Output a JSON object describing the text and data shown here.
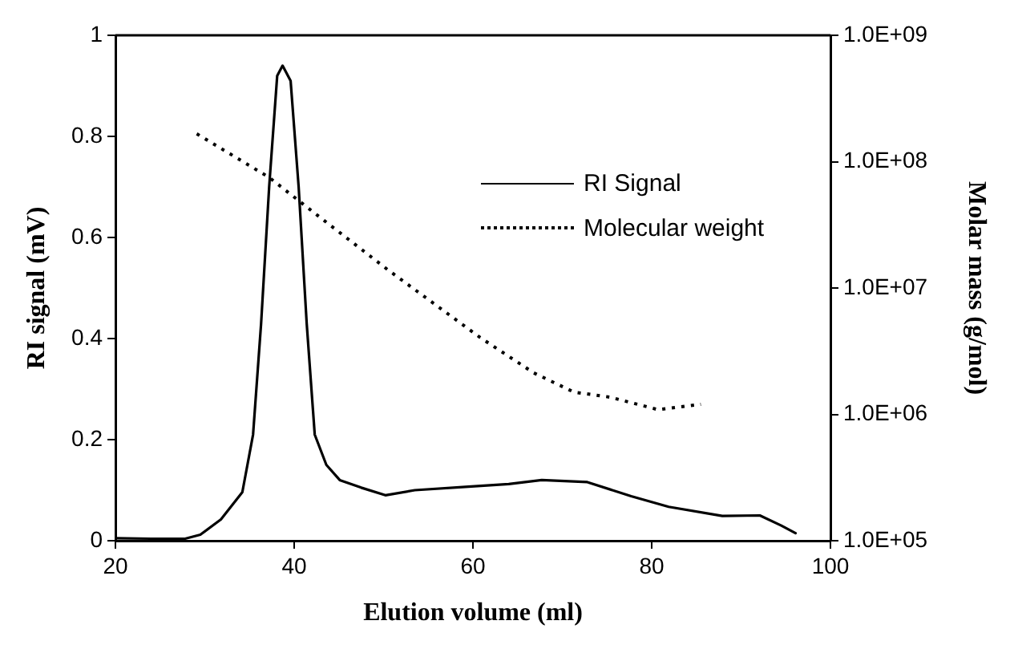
{
  "chart_data": {
    "type": "line",
    "xlabel": "Elution volume (ml)",
    "ylabel": "RI signal (mV)",
    "y2label": "Molar mass (g/mol)",
    "xlim": [
      20,
      100
    ],
    "xticks": [
      20,
      40,
      60,
      80,
      100
    ],
    "ylim": [
      0,
      1
    ],
    "yticks": [
      0,
      0.2,
      0.4,
      0.6,
      0.8,
      1
    ],
    "y2lim": [
      100000,
      1000000000
    ],
    "y2ticks": [
      {
        "value": 100000,
        "label": "1.0E+05"
      },
      {
        "value": 1000000,
        "label": "1.0E+06"
      },
      {
        "value": 10000000,
        "label": "1.0E+07"
      },
      {
        "value": 100000000,
        "label": "1.0E+08"
      },
      {
        "value": 1000000000,
        "label": "1.0E+09"
      }
    ],
    "log": "y2",
    "grid": false,
    "legend": "top right",
    "marker": "none",
    "series": [
      {
        "name": "RI Signal",
        "color": "#000000",
        "line_style": "solid",
        "x": [
          20,
          24,
          27.8,
          29.5,
          31.8,
          34.2,
          35.4,
          36.3,
          37.2,
          38.1,
          38.7,
          39.6,
          40.5,
          41.4,
          42.3,
          43.6,
          45.1,
          47.5,
          50.2,
          53.5,
          59.5,
          64,
          67.7,
          72.8,
          77.7,
          81.9,
          87.9,
          92.1,
          94.5,
          96.1
        ],
        "values": [
          0.005,
          0.004,
          0.004,
          0.012,
          0.042,
          0.096,
          0.21,
          0.43,
          0.7,
          0.92,
          0.94,
          0.91,
          0.7,
          0.43,
          0.21,
          0.15,
          0.12,
          0.105,
          0.09,
          0.1,
          0.107,
          0.112,
          0.12,
          0.116,
          0.088,
          0.067,
          0.049,
          0.05,
          0.03,
          0.015
        ]
      },
      {
        "name": "Molecular weight",
        "color": "#000000",
        "line_style": "dotted",
        "axis": "y2",
        "x": [
          29.1,
          37.2,
          42.6,
          50.5,
          60.8,
          66.8,
          71.3,
          75.3,
          80.7,
          85.5
        ],
        "values": [
          166000000,
          75000000,
          37600000,
          13900000,
          4060000,
          2130000,
          1500000,
          1370000,
          1090000,
          1200000
        ]
      }
    ]
  }
}
